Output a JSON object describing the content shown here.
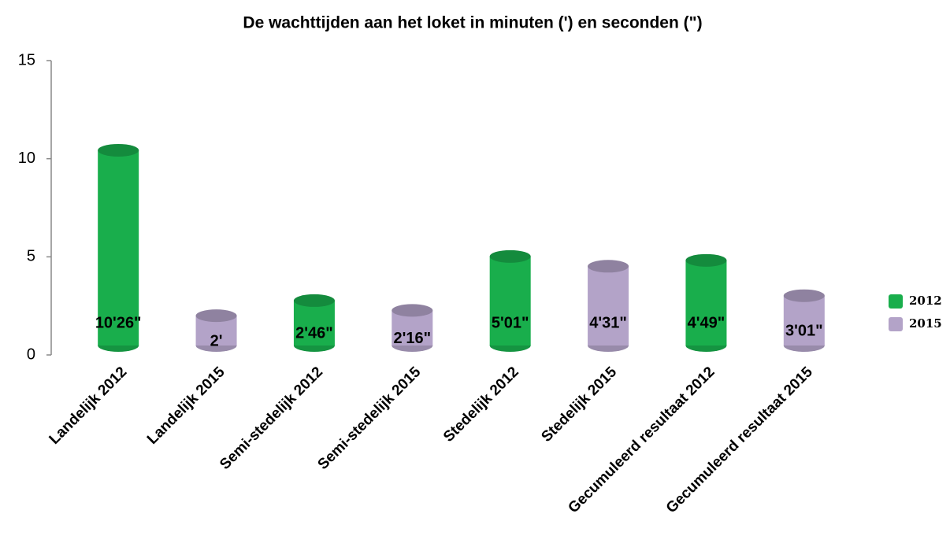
{
  "chart_data": {
    "type": "bar",
    "title": "De wachttijden aan het loket in minuten (') en seconden (\")",
    "categories": [
      "Landelijk 2012",
      "Landelijk 2015",
      "Semi-stedelijk 2012",
      "Semi-stedelijk 2015",
      "Stedelijk 2012",
      "Stedelijk 2015",
      "Gecumuleerd resultaat 2012",
      "Gecumuleerd resultaat 2015"
    ],
    "series": [
      {
        "name": "2012",
        "color": "#19ae4c",
        "values": [
          10.43,
          null,
          2.77,
          null,
          5.02,
          null,
          4.82,
          null
        ],
        "value_labels": [
          "10'26\"",
          null,
          "2'46\"",
          null,
          "5'01\"",
          null,
          "4'49\"",
          null
        ]
      },
      {
        "name": "2015",
        "color": "#b3a3c8",
        "values": [
          null,
          2,
          null,
          2.27,
          null,
          4.52,
          null,
          3.02
        ],
        "value_labels": [
          null,
          "2'",
          null,
          "2'16\"",
          null,
          "4'31\"",
          null,
          "3'01\""
        ]
      }
    ],
    "ylim": [
      0,
      15
    ],
    "yticks": [
      0,
      5,
      10,
      15
    ],
    "legend": "right"
  }
}
